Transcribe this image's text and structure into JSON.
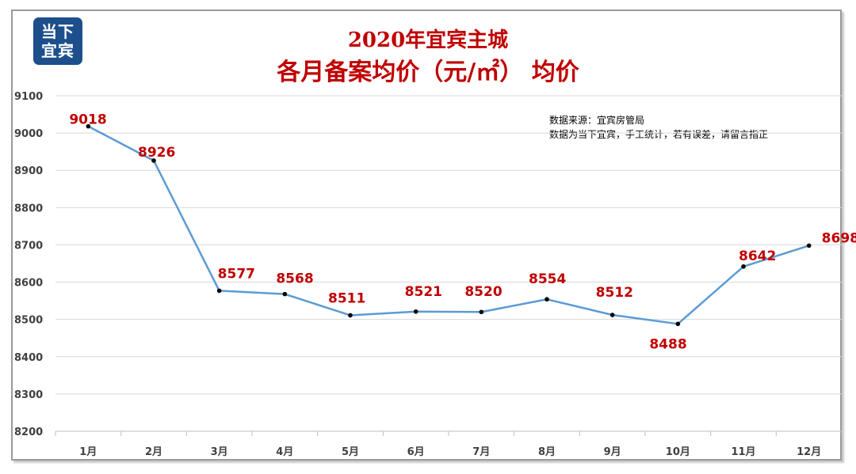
{
  "logo": {
    "line1": "当下",
    "line2": "宜宾"
  },
  "chart_data": {
    "type": "line",
    "title": "2020年宜宾主城",
    "subtitle": "各月备案均价（元/㎡） 均价",
    "categories": [
      "1月",
      "2月",
      "3月",
      "4月",
      "5月",
      "6月",
      "7月",
      "8月",
      "9月",
      "10月",
      "11月",
      "12月"
    ],
    "series": [
      {
        "values": [
          9018,
          8926,
          8577,
          8568,
          8511,
          8521,
          8520,
          8554,
          8512,
          8488,
          8642,
          8698
        ]
      }
    ],
    "ylim": [
      8200,
      9100
    ],
    "yticks": [
      8200,
      8300,
      8400,
      8500,
      8600,
      8700,
      8800,
      8900,
      9000,
      9100
    ],
    "grid": true,
    "line_color": "#5b9bd5",
    "label_color": "#c00000",
    "annotations": [
      "数据来源：宜宾房管局",
      "数据为当下宜宾，手工统计，若有误差，请留言指正"
    ]
  }
}
